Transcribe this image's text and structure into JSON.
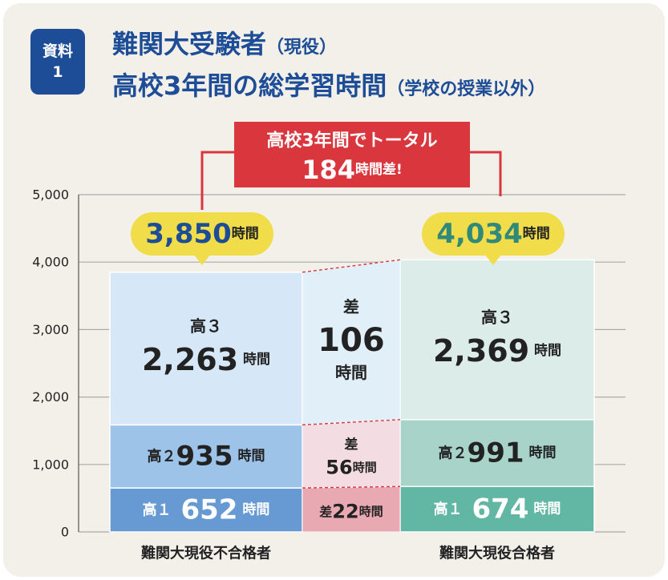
{
  "badge": {
    "line1": "資料",
    "line2": "1"
  },
  "title": {
    "line1_main": "難関大受験者",
    "line1_paren": "（現役）",
    "line2_main": "高校3年間の総学習時間",
    "line2_paren": "（学校の授業以外）"
  },
  "callout": {
    "line1": "高校3年間でトータル",
    "value": "184",
    "unit": "時間差!"
  },
  "colors": {
    "title": "#1d4d96",
    "callout": "#d9363e",
    "bubble": "#f1dc4a",
    "blue_g3": "#d6e7f7",
    "blue_g2": "#9dc3e8",
    "blue_g1": "#6799d3",
    "green_g3": "#dcece8",
    "green_g2": "#a7d3c8",
    "green_g1": "#62b6a4",
    "diff_g3": "#e1eff8",
    "diff_g2": "#f3dde3",
    "diff_g1": "#e8a9b2"
  },
  "chart_data": {
    "type": "bar",
    "stacked": true,
    "ylim": [
      0,
      5000
    ],
    "yticks": [
      "5,000",
      "4,000",
      "3,000",
      "2,000",
      "1,000",
      "0"
    ],
    "ytick_values": [
      5000,
      4000,
      3000,
      2000,
      1000,
      0
    ],
    "grid": true,
    "categories": [
      "難関大現役不合格者",
      "難関大現役合格者"
    ],
    "totals": [
      3850,
      4034
    ],
    "total_labels": [
      {
        "value": "3,850",
        "unit": "時間"
      },
      {
        "value": "4,034",
        "unit": "時間"
      }
    ],
    "series": [
      {
        "name": "高１",
        "values": [
          652,
          674
        ],
        "labels": [
          "652",
          "674"
        ]
      },
      {
        "name": "高２",
        "values": [
          935,
          991
        ],
        "labels": [
          "935",
          "991"
        ]
      },
      {
        "name": "高３",
        "values": [
          2263,
          2369
        ],
        "labels": [
          "2,263",
          "2,369"
        ]
      }
    ],
    "segment_unit": "時間",
    "differences": [
      {
        "prefix": "差",
        "value": "22",
        "unit": "時間",
        "num": 22
      },
      {
        "prefix": "差",
        "value": "56",
        "unit": "時間",
        "num": 56
      },
      {
        "prefix": "差",
        "value": "106",
        "unit": "時間",
        "num": 106
      }
    ]
  }
}
